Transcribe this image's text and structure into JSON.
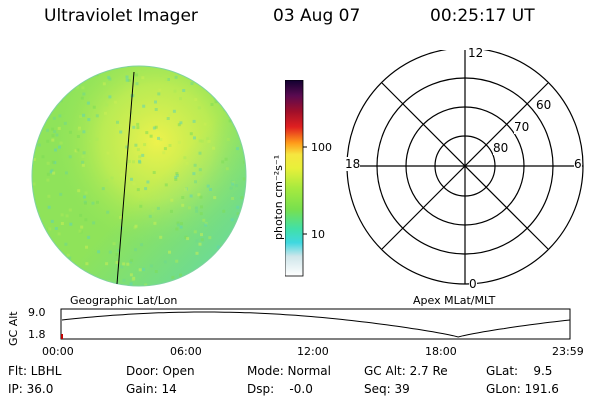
{
  "header": {
    "instrument": "Ultraviolet Imager",
    "date": "03 Aug 07",
    "time": "00:25:17 UT"
  },
  "colorbar": {
    "units": "photon cm⁻²s⁻¹",
    "ticks": [
      "100",
      "10"
    ]
  },
  "polar_plot": {
    "mlt_labels": [
      "12",
      "18",
      "6",
      "0"
    ],
    "lat_labels": [
      "60",
      "70",
      "80"
    ]
  },
  "orbit_plot": {
    "ylabel": "GC Alt",
    "yticks": [
      "9.0",
      "1.8"
    ],
    "left_title": "Geographic Lat/Lon",
    "right_title": "Apex MLat/MLT",
    "xticks": [
      "00:00",
      "06:00",
      "12:00",
      "18:00",
      "23:59"
    ]
  },
  "info": {
    "flt": "Flt: LBHL",
    "ip": "IP: 36.0",
    "door": "Door: Open",
    "gain": "Gain: 14",
    "mode": "Mode: Normal",
    "dsp": "Dsp:    -0.0",
    "gcalt": "GC Alt: 2.7 Re",
    "seq": "Seq: 39",
    "glat": "GLat:    9.5",
    "glon": "GLon: 191.6"
  },
  "colors": {
    "image_base": "#8fe35a",
    "image_bright": "#e6f04a",
    "image_dim": "#56d8b0"
  }
}
